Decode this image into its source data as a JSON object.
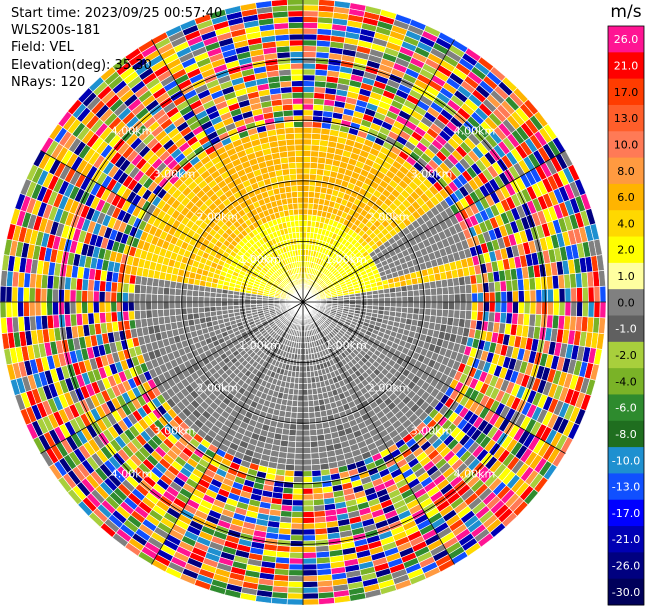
{
  "header": {
    "start_time": "Start time: 2023/09/25 00:57:40",
    "instrument": "WLS200s-181",
    "field": "Field: VEL",
    "elevation": "Elevation(deg): 35.30",
    "nrays": "NRays: 120"
  },
  "colorbar": {
    "unit": "m/s",
    "levels": [
      "26.0",
      "21.0",
      "17.0",
      "13.0",
      "10.0",
      "8.0",
      "6.0",
      "4.0",
      "2.0",
      "1.0",
      "0.0",
      "-1.0",
      "-2.0",
      "-4.0",
      "-6.0",
      "-8.0",
      "-10.0",
      "-13.0",
      "-17.0",
      "-21.0",
      "-26.0",
      "-30.0"
    ],
    "colors": [
      "#ff1493",
      "#ff0000",
      "#ff3c00",
      "#ff5e2a",
      "#ff7a56",
      "#ff9a40",
      "#ffb400",
      "#ffd800",
      "#ffff00",
      "#ffffa0",
      "#808080",
      "#606060",
      "#a8cf3c",
      "#7ab327",
      "#2e8b2e",
      "#1f6e1f",
      "#1e90d0",
      "#1050ff",
      "#0000ff",
      "#0000b4",
      "#000080",
      "#00005a"
    ]
  },
  "range_rings": {
    "labels": [
      "1.00km",
      "2.00km",
      "3.00km",
      "4.00km"
    ]
  },
  "plot": {
    "nrays": 120,
    "max_range_km": 5.0,
    "ring_km": [
      1,
      2,
      3,
      4
    ]
  }
}
